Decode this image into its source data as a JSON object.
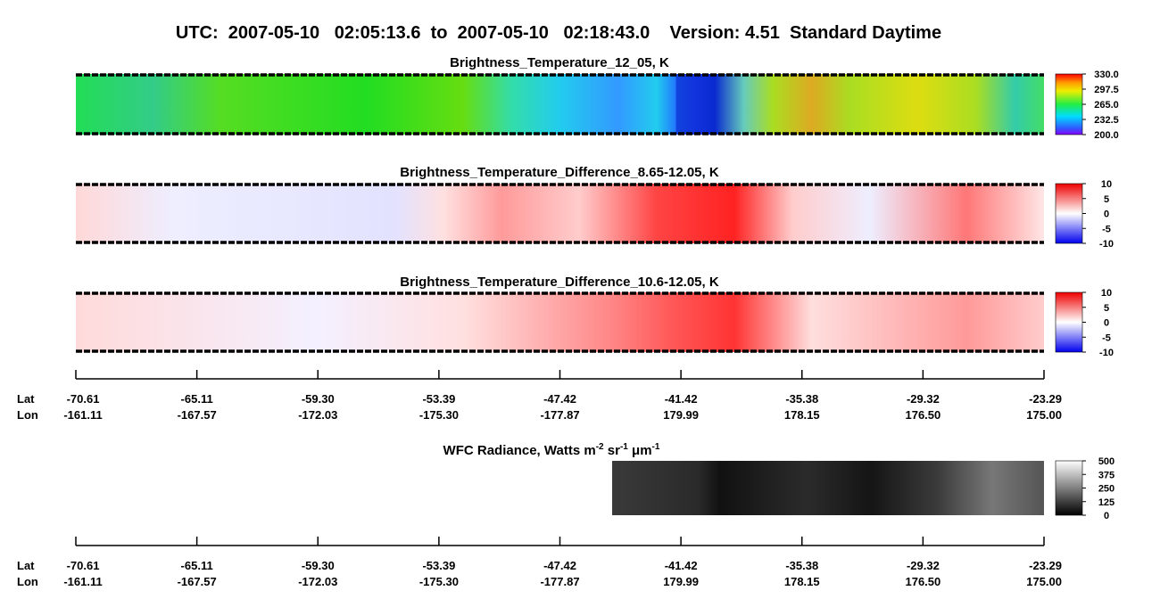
{
  "title": "UTC:  2007-05-10   02:05:13.6  to  2007-05-10   02:18:43.0    Version: 4.51  Standard Daytime",
  "panels": [
    {
      "title": "Brightness_Temperature_12_05, K",
      "clim": [
        200,
        330
      ],
      "ticks": [
        {
          "value": 330,
          "label": "330.0"
        },
        {
          "value": 297.5,
          "label": "297.5"
        },
        {
          "value": 265,
          "label": "265.0"
        },
        {
          "value": 232.5,
          "label": "232.5"
        },
        {
          "value": 200,
          "label": "200.0"
        }
      ]
    },
    {
      "title": "Brightness_Temperature_Difference_8.65-12.05, K",
      "clim": [
        -10,
        10
      ],
      "ticks": [
        10,
        5,
        0,
        -5,
        -10
      ]
    },
    {
      "title": "Brightness_Temperature_Difference_10.6-12.05, K",
      "clim": [
        -10,
        10
      ],
      "ticks": [
        10,
        5,
        0,
        -5,
        -10
      ]
    }
  ],
  "wfc": {
    "title_parts": [
      "WFC Radiance, Watts m",
      "-2",
      " sr",
      "-1",
      " μm",
      "-1"
    ],
    "clim": [
      0,
      500
    ],
    "ticks": [
      500,
      375,
      250,
      125,
      0
    ]
  },
  "axis": {
    "lat_label": "Lat",
    "lon_label": "Lon",
    "lat": [
      "-70.61",
      "-65.11",
      "-59.30",
      "-53.39",
      "-47.42",
      "-41.42",
      "-35.38",
      "-29.32",
      "-23.29"
    ],
    "lon": [
      "-161.11",
      "-167.57",
      "-172.03",
      "-175.30",
      "-177.87",
      "179.99",
      "178.15",
      "176.50",
      "175.00"
    ]
  }
}
